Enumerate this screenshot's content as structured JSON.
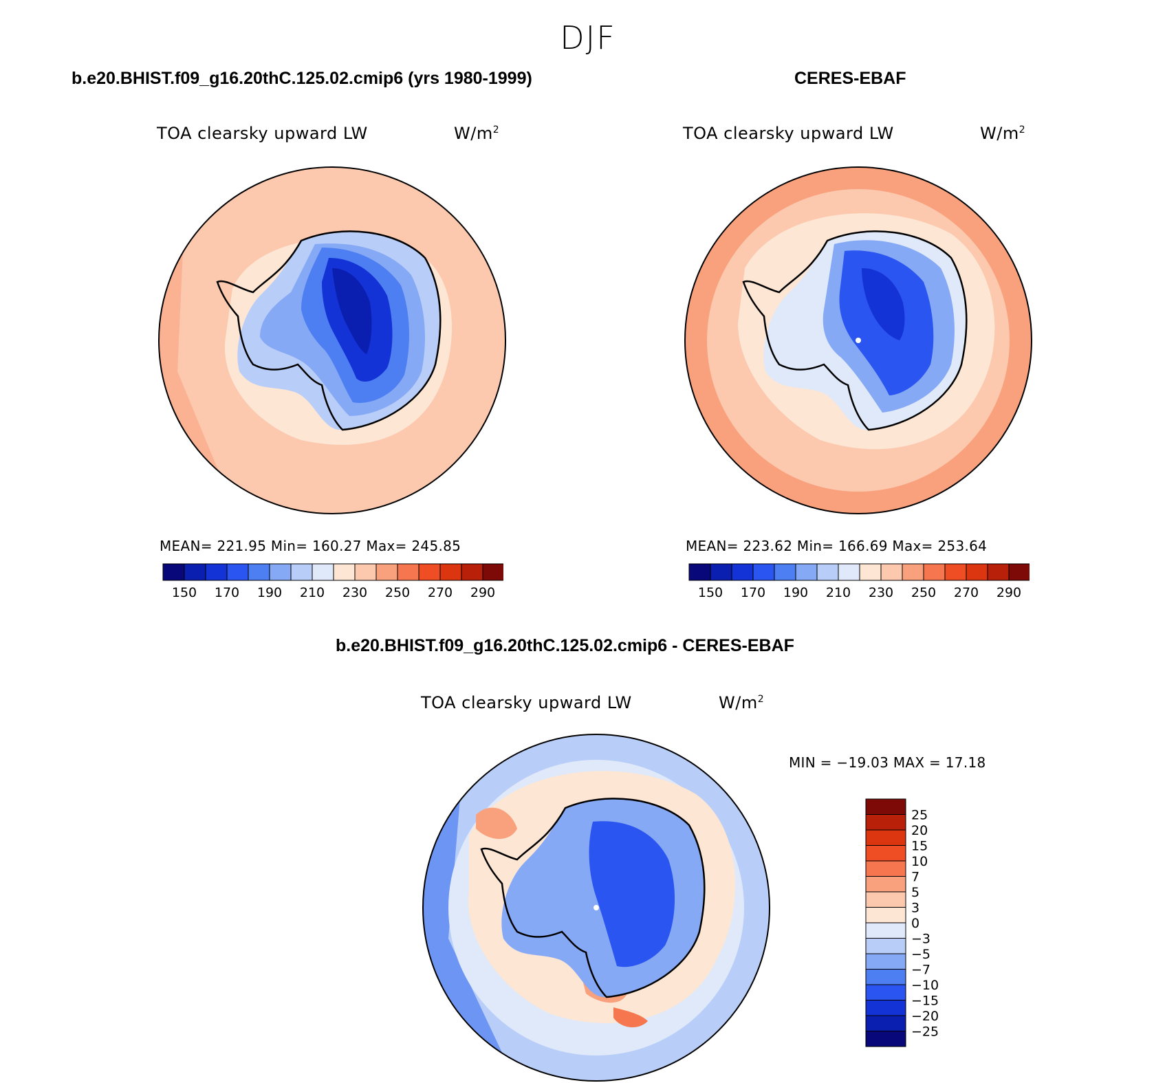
{
  "figure": {
    "title": "DJF"
  },
  "panels": [
    {
      "id": "model",
      "title": "b.e20.BHIST.f09_g16.20thC.125.02.cmip6 (yrs 1980-1999)",
      "variable": "TOA clearsky upward LW",
      "units_base": "W/m",
      "units_exp": "2",
      "stats": "MEAN= 221.95   Min= 160.27   Max= 245.85",
      "mean": 221.95,
      "min": 160.27,
      "max": 245.85
    },
    {
      "id": "obs",
      "title": "CERES-EBAF",
      "variable": "TOA clearsky upward LW",
      "units_base": "W/m",
      "units_exp": "2",
      "stats": "MEAN= 223.62   Min= 166.69   Max= 253.64",
      "mean": 223.62,
      "min": 166.69,
      "max": 253.64
    },
    {
      "id": "diff",
      "title": "b.e20.BHIST.f09_g16.20thC.125.02.cmip6 - CERES-EBAF",
      "variable": "TOA clearsky upward LW",
      "units_base": "W/m",
      "units_exp": "2",
      "stats": "MIN = −19.03 MAX =  17.18",
      "min": -19.03,
      "max": 17.18
    }
  ],
  "colorbars": {
    "abs": {
      "colors": [
        "#08087a",
        "#0a1fb0",
        "#1433d6",
        "#2a55f0",
        "#4d7ff2",
        "#86a9f5",
        "#b8cdf7",
        "#dfe9fa",
        "#fde6d4",
        "#fcc8ae",
        "#f9a07c",
        "#f5764f",
        "#ef4d23",
        "#dc3610",
        "#b82009",
        "#7d0a06"
      ],
      "labels": [
        "150",
        "170",
        "190",
        "210",
        "230",
        "250",
        "270",
        "290"
      ]
    },
    "diff": {
      "colors": [
        "#7d0a06",
        "#b82009",
        "#dc3610",
        "#ef4d23",
        "#f5764f",
        "#f9a07c",
        "#fcc8ae",
        "#fde6d4",
        "#dfe9fa",
        "#b8cdf7",
        "#86a9f5",
        "#4d7ff2",
        "#2a55f0",
        "#1433d6",
        "#0a1fb0",
        "#08087a"
      ],
      "labels": [
        "25",
        "20",
        "15",
        "10",
        "7",
        "5",
        "3",
        "0",
        "−3",
        "−5",
        "−7",
        "−10",
        "−15",
        "−20",
        "−25"
      ]
    }
  }
}
